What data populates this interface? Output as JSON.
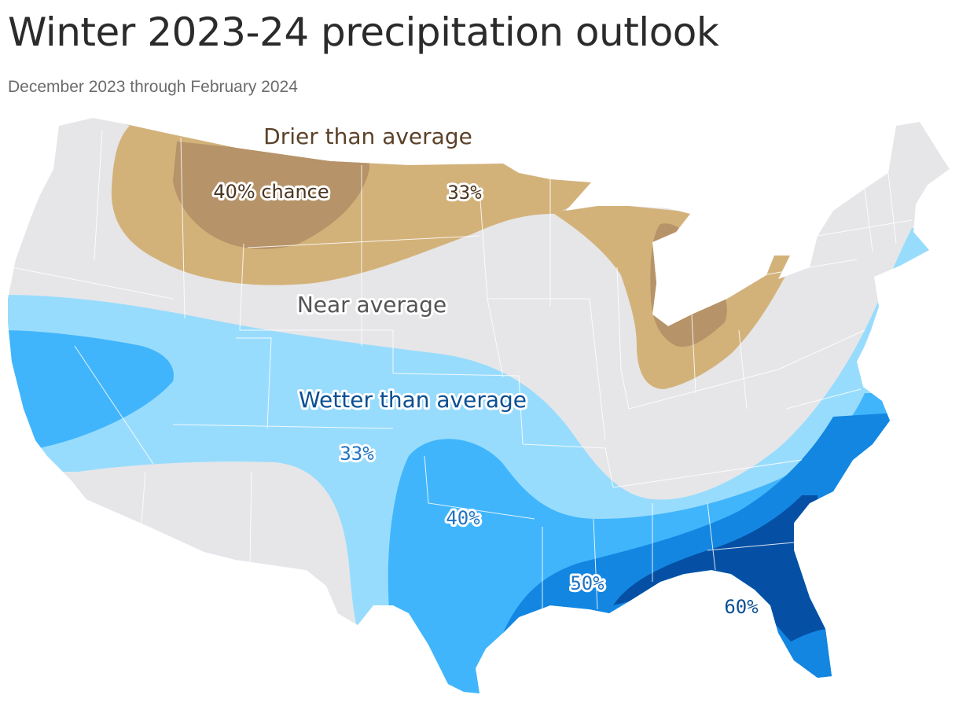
{
  "header": {
    "title": "Winter 2023-24 precipitation outlook",
    "subtitle": "December 2023 through February 2024"
  },
  "map": {
    "categories": [
      {
        "key": "drier",
        "label": "Drier than average",
        "color": "#5b4128"
      },
      {
        "key": "near",
        "label": "Near average",
        "color": "#555555"
      },
      {
        "key": "wetter",
        "label": "Wetter than average",
        "color": "#0b4f94"
      }
    ],
    "probability_labels": [
      {
        "category": "drier",
        "text": "40% chance",
        "color": "#4a3520"
      },
      {
        "category": "drier",
        "text": "33%",
        "color": "#4a3520"
      },
      {
        "category": "wetter",
        "text": "33%",
        "color": "#1f73c4"
      },
      {
        "category": "wetter",
        "text": "40%",
        "color": "#1f73c4"
      },
      {
        "category": "wetter",
        "text": "50%",
        "color": "#1f73c4"
      },
      {
        "category": "wetter",
        "text": "60%",
        "color": "#0b4f94"
      }
    ],
    "fill_colors": {
      "land": "#e6e6e8",
      "dry_33": "#d3b27a",
      "dry_40": "#b69368",
      "wet_33": "#98dcfd",
      "wet_40": "#41b5fc",
      "wet_50": "#1386e2",
      "wet_60": "#0550a4"
    }
  }
}
